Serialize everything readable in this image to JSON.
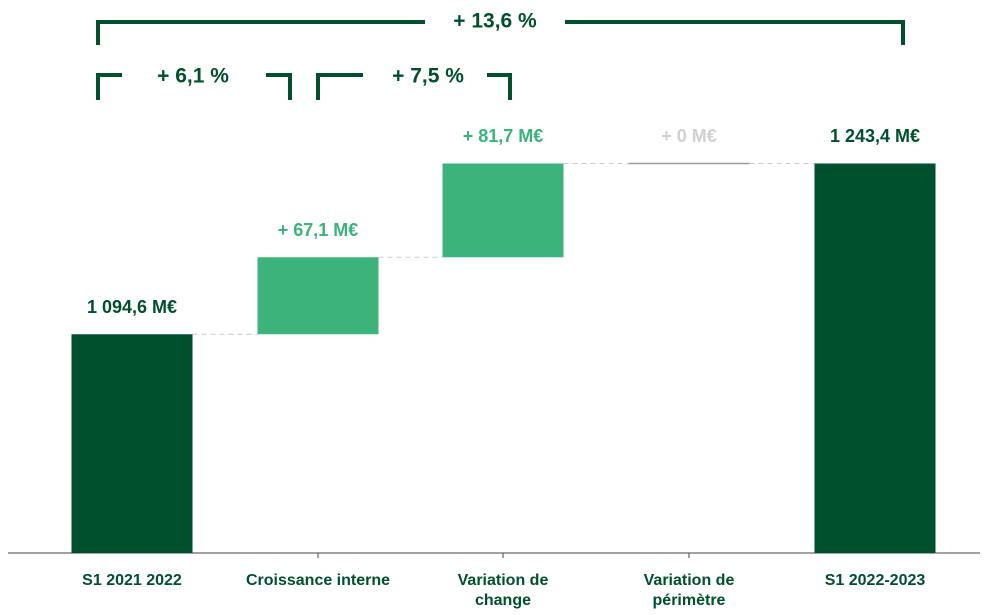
{
  "chart_data": {
    "type": "waterfall",
    "categories": [
      "S1 2021 2022",
      "Croissance interne",
      "Variation de change",
      "Variation de périmètre",
      "S1 2022-2023"
    ],
    "values": [
      1094.6,
      67.1,
      81.7,
      0,
      1243.4
    ],
    "value_labels": [
      "1 094,6 M€",
      "+ 67,1 M€",
      "+ 81,7 M€",
      "+ 0 M€",
      "1 243,4 M€"
    ],
    "measure": [
      "absolute",
      "relative",
      "relative",
      "relative",
      "total"
    ],
    "colors": [
      "#004f2d",
      "#3bb37a",
      "#3bb37a",
      "#9a9a9a",
      "#004f2d"
    ],
    "label_colors": [
      "#004f2d",
      "#3bb37a",
      "#3bb37a",
      "#d0d0d0",
      "#004f2d"
    ],
    "ylim": [
      904,
      1290
    ],
    "annotations": [
      "+ 13,6 %",
      "+ 6,1 %",
      "+ 7,5 %"
    ]
  }
}
